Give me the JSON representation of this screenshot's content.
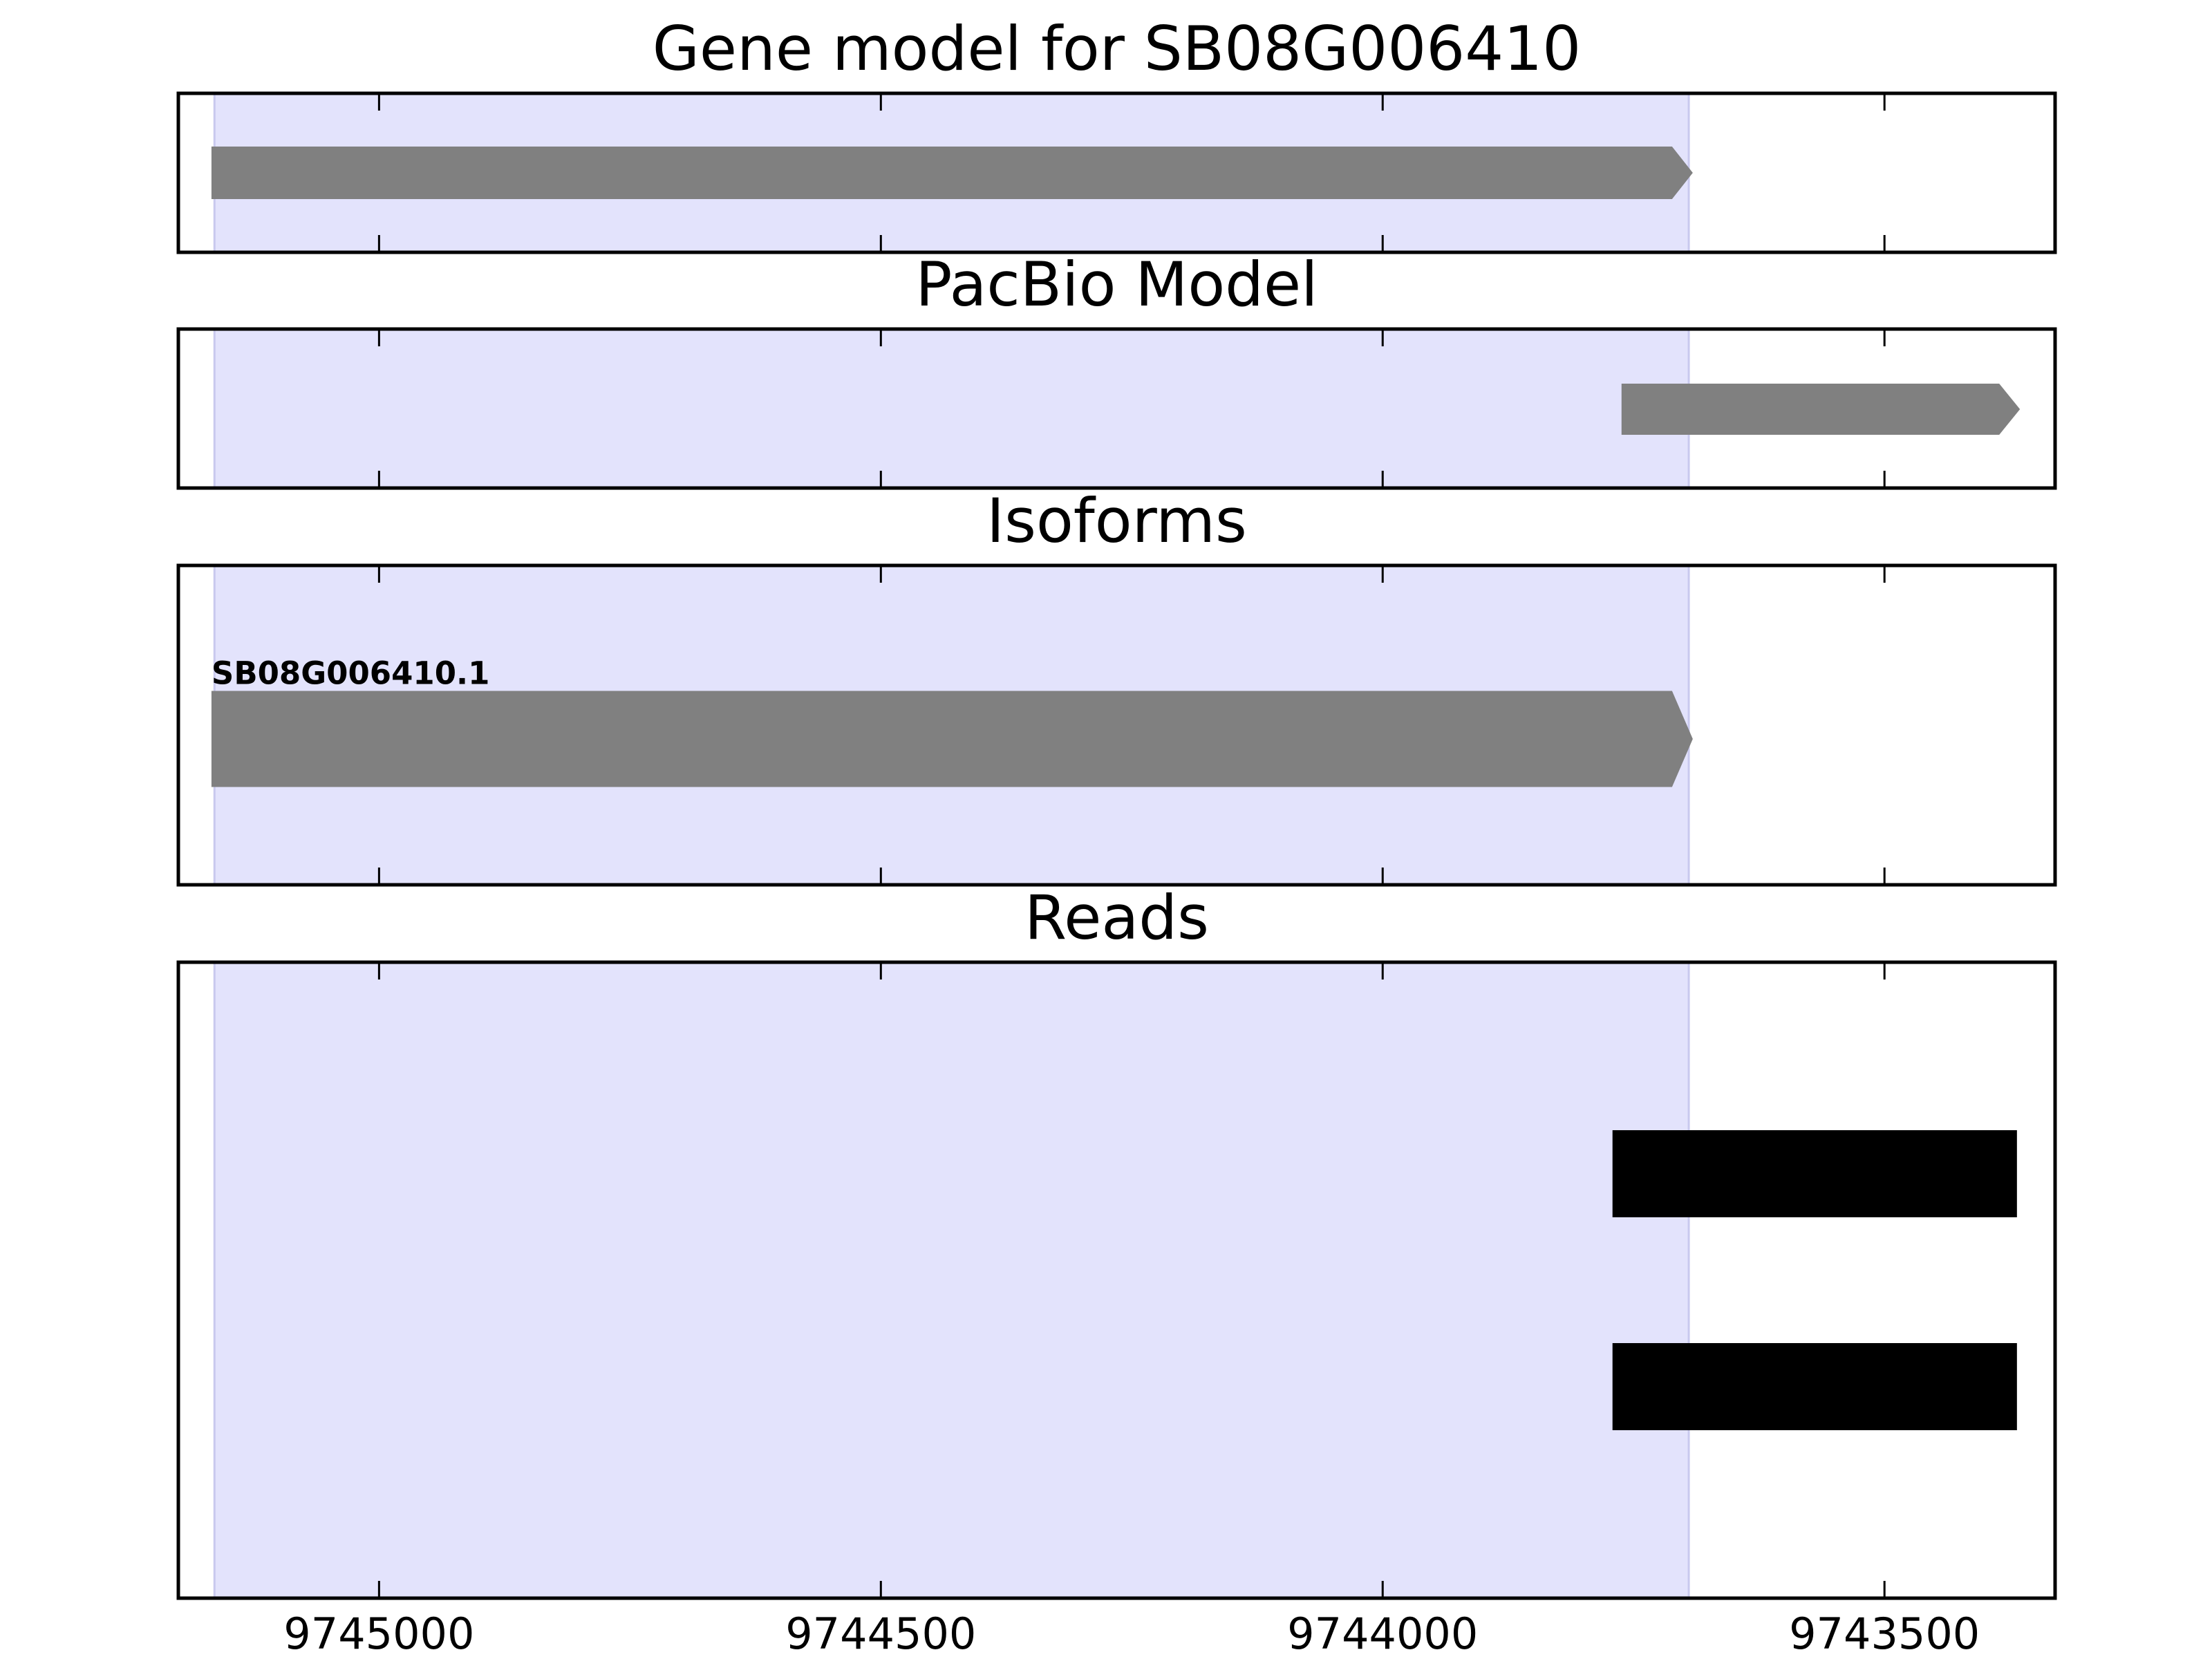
{
  "chart_data": [
    {
      "type": "interval",
      "title": "Gene model for SB08G006410",
      "xlim": [
        9745200,
        9743330
      ],
      "xticks": [
        9745000,
        9744500,
        9744000,
        9743500
      ],
      "highlight": [
        9745164,
        9743695
      ],
      "features": [
        {
          "start": 9745167,
          "end": 9743691,
          "color": "#808080",
          "arrow": true
        }
      ]
    },
    {
      "type": "interval",
      "title": "PacBio Model",
      "xlim": [
        9745200,
        9743330
      ],
      "xticks": [
        9745000,
        9744500,
        9744000,
        9743500
      ],
      "highlight": [
        9745164,
        9743695
      ],
      "features": [
        {
          "start": 9743762,
          "end": 9743365,
          "color": "#808080",
          "arrow": true
        }
      ]
    },
    {
      "type": "interval",
      "title": "Isoforms",
      "xlim": [
        9745200,
        9743330
      ],
      "xticks": [
        9745000,
        9744500,
        9744000,
        9743500
      ],
      "highlight": [
        9745164,
        9743695
      ],
      "features": [
        {
          "start": 9745167,
          "end": 9743691,
          "color": "#808080",
          "arrow": true,
          "label": "SB08G006410.1"
        }
      ]
    },
    {
      "type": "interval",
      "title": "Reads",
      "xlim": [
        9745200,
        9743330
      ],
      "xticks": [
        9745000,
        9744500,
        9744000,
        9743500
      ],
      "highlight": [
        9745164,
        9743695
      ],
      "features": [
        {
          "start": 9743771,
          "end": 9743368,
          "color": "#000000",
          "arrow": false
        },
        {
          "start": 9743771,
          "end": 9743368,
          "color": "#000000",
          "arrow": false
        }
      ]
    }
  ]
}
